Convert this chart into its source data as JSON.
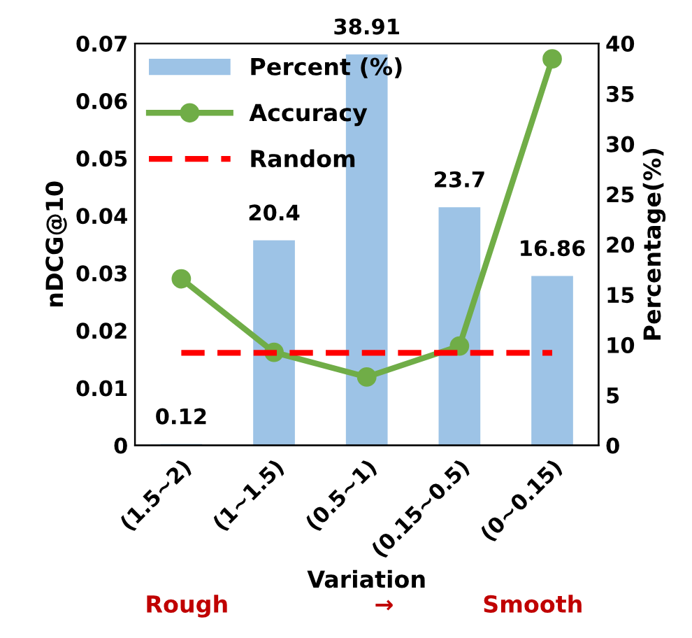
{
  "chart_data": {
    "type": "bar",
    "xlabel": "Variation",
    "ylabel": "nDCG@10",
    "y2label": "Percentage(%)",
    "categories": [
      "(1.5~2)",
      "(1~1.5)",
      "(0.5~1)",
      "(0.15~0.5)",
      "(0~0.15)"
    ],
    "series": [
      {
        "name": "Percent (%)",
        "axis": "y2",
        "color": "#9dc3e6",
        "values": [
          0.12,
          20.4,
          38.91,
          23.7,
          16.86
        ],
        "value_labels": [
          "0.12",
          "20.4",
          "38.91",
          "23.7",
          "16.86"
        ]
      },
      {
        "name": "Accuracy",
        "type": "line",
        "color": "#70ad47",
        "marker": "circle",
        "line_style": "solid",
        "values": [
          0.029,
          0.0162,
          0.0119,
          0.0173,
          0.0673
        ]
      },
      {
        "name": "Random",
        "type": "line",
        "color": "#ff0000",
        "marker": "none",
        "line_style": "dashed",
        "values": [
          0.0161,
          0.0161,
          0.0161,
          0.0161,
          0.0161
        ]
      }
    ],
    "ylim": [
      0,
      0.07
    ],
    "yticks": [
      0,
      0.01,
      0.02,
      0.03,
      0.04,
      0.05,
      0.06,
      0.07
    ],
    "y2lim": [
      0,
      40
    ],
    "y2ticks": [
      0,
      5,
      10,
      15,
      20,
      25,
      30,
      35,
      40
    ],
    "grid": false,
    "legend": "top left",
    "annotations": [
      "Rough",
      "→",
      "Smooth"
    ]
  }
}
